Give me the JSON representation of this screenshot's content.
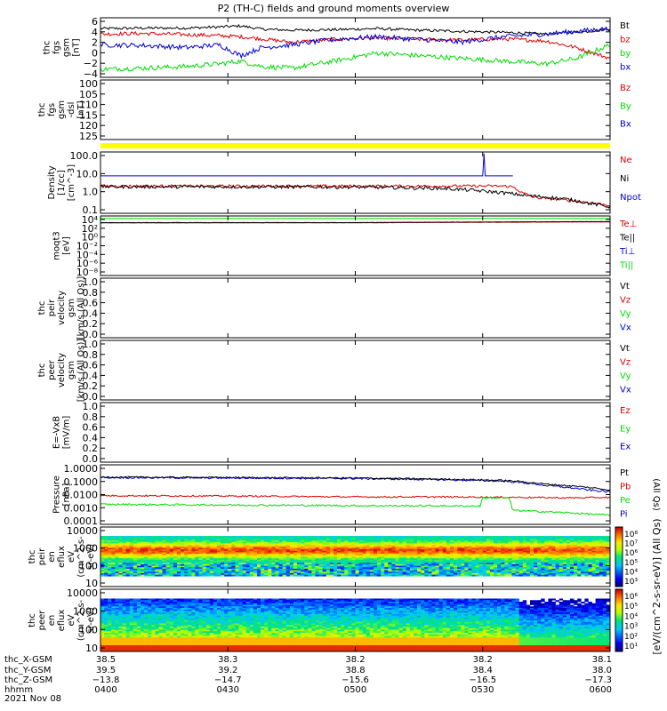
{
  "title": "P2 (TH-C) fields and ground moments overview",
  "date": "2021 Nov 08",
  "colors": {
    "black": "#000000",
    "red": "#dd0000",
    "green": "#00dd00",
    "blue": "#0000dd",
    "yellow": "#ffff00"
  },
  "colorbar": {
    "unit_label": "[eV/(cm^2-s-sr-eV)] (All Qs)",
    "ticks_top": [
      "10⁸",
      "10⁷",
      "10⁶",
      "10⁵",
      "10⁴",
      "10³"
    ],
    "ticks_bottom": [
      "10⁶",
      "10⁵",
      "10⁴",
      "10³",
      "10²",
      "10¹"
    ]
  },
  "chart_data": [
    {
      "type": "line",
      "panel": "fgs-gsm",
      "ylabel": [
        "thc",
        "fgs",
        "gsm",
        "[nT]"
      ],
      "yticks": [
        "6",
        "4",
        "2",
        "0",
        "−2",
        "−4"
      ],
      "ylim": [
        -4.5,
        6.5
      ],
      "legend": [
        "Bt",
        "bz",
        "by",
        "bx"
      ],
      "series": [
        {
          "name": "Bt",
          "color": "#000000",
          "x": [
            0,
            10,
            20,
            28,
            33,
            38,
            45,
            55,
            65,
            75,
            85,
            95,
            105,
            115,
            120
          ],
          "y": [
            4.5,
            4.6,
            4.6,
            4.8,
            5.0,
            4.4,
            4.2,
            4.3,
            4.5,
            4.2,
            4.0,
            3.8,
            3.5,
            4.0,
            4.5
          ],
          "noise": 0.25
        },
        {
          "name": "bz",
          "color": "#dd0000",
          "x": [
            0,
            10,
            20,
            28,
            33,
            38,
            45,
            55,
            65,
            75,
            85,
            95,
            105,
            112,
            120
          ],
          "y": [
            3.5,
            3.6,
            3.4,
            3.2,
            3.0,
            2.6,
            2.0,
            2.5,
            2.8,
            2.5,
            2.4,
            2.6,
            2.2,
            1.0,
            -1.0
          ],
          "noise": 0.35
        },
        {
          "name": "by",
          "color": "#00dd00",
          "x": [
            0,
            10,
            20,
            28,
            33,
            38,
            45,
            55,
            65,
            75,
            85,
            95,
            105,
            112,
            120
          ],
          "y": [
            -3.0,
            -2.8,
            -2.5,
            -2.0,
            -1.5,
            -2.5,
            -2.8,
            -1.5,
            0.0,
            -0.5,
            -1.0,
            -1.5,
            -2.0,
            -1.0,
            1.5
          ],
          "noise": 0.45
        },
        {
          "name": "bx",
          "color": "#0000dd",
          "x": [
            0,
            10,
            20,
            28,
            33,
            38,
            45,
            55,
            65,
            75,
            85,
            95,
            105,
            112,
            120
          ],
          "y": [
            1.5,
            1.4,
            1.0,
            1.5,
            -0.5,
            1.0,
            1.5,
            2.5,
            3.0,
            2.5,
            2.0,
            3.0,
            3.5,
            4.0,
            4.5
          ],
          "noise": 0.45
        }
      ]
    },
    {
      "type": "line",
      "panel": "fgs-gsm-dsl",
      "ylabel": [
        "thc",
        "fgs",
        "gsm",
        "-dsl",
        "[nT]"
      ],
      "yticks": [
        "100",
        "105",
        "110",
        "115",
        "120",
        "125"
      ],
      "ylim": [
        128,
        99
      ],
      "legend": [
        "Bz",
        "By",
        "Bx"
      ],
      "series": []
    },
    {
      "type": "line",
      "panel": "density",
      "ylabel": [
        "Density",
        "[1/cc]",
        "[cm^-3]"
      ],
      "yticks": [
        "100.0",
        "10.0",
        "1.0",
        "0.1"
      ],
      "yscale": "log",
      "ylim": [
        0.05,
        250
      ],
      "legend": [
        "Ne",
        "Ni",
        "Npot"
      ],
      "series": [
        {
          "name": "Npot",
          "color": "#0000dd",
          "x": [
            0,
            30,
            60,
            90,
            90.3,
            90.6,
            95,
            97,
            97.1
          ],
          "y": [
            9,
            9,
            9,
            9,
            200,
            9,
            9,
            9,
            9
          ],
          "noise": 0.0
        },
        {
          "name": "Ne",
          "color": "#dd0000",
          "x": [
            0,
            30,
            60,
            90,
            95,
            97,
            99,
            102,
            110,
            120
          ],
          "y": [
            2.2,
            2.2,
            2.2,
            2.2,
            2.2,
            2.0,
            0.9,
            0.45,
            0.3,
            0.15
          ],
          "noise": 0.08
        },
        {
          "name": "Ni",
          "color": "#000000",
          "x": [
            0,
            30,
            60,
            80,
            90,
            100,
            110,
            115,
            120
          ],
          "y": [
            2.0,
            2.0,
            1.9,
            1.6,
            1.1,
            0.6,
            0.35,
            0.2,
            0.12
          ],
          "noise": 0.1
        }
      ]
    },
    {
      "type": "line",
      "panel": "moqt3",
      "ylabel": [
        "moqt3",
        "[eV]"
      ],
      "yticks": [
        "10⁴",
        "10²",
        "10⁰",
        "10⁻²",
        "10⁻⁴",
        "10⁻⁶",
        "10⁻⁸"
      ],
      "yscale": "log",
      "ylim": [
        1e-09,
        10000.0
      ],
      "legend": [
        "Te⊥",
        "Te||",
        "Ti⊥",
        "Ti||"
      ],
      "series": [
        {
          "name": "Ti||",
          "color": "#00dd00",
          "x": [
            0,
            120
          ],
          "y": [
            3000,
            3000
          ],
          "noise": 0.0
        },
        {
          "name": "Te⊥",
          "color": "#dd0000",
          "x": [
            0,
            60,
            120
          ],
          "y": [
            300,
            320,
            500
          ],
          "noise": 0.03
        },
        {
          "name": "Te||",
          "color": "#000000",
          "x": [
            0,
            60,
            120
          ],
          "y": [
            350,
            360,
            600
          ],
          "noise": 0.03
        }
      ]
    },
    {
      "type": "line",
      "panel": "peir-velocity",
      "ylabel": [
        "thc",
        "peir",
        "velocity",
        "gsm",
        "[km/s (All Qs)]"
      ],
      "yticks": [
        "1.0",
        "0.8",
        "0.6",
        "0.4",
        "0.2",
        "0.0"
      ],
      "ylim": [
        0,
        1
      ],
      "legend": [
        "Vt",
        "Vz",
        "Vy",
        "Vx"
      ],
      "series": []
    },
    {
      "type": "line",
      "panel": "peer-velocity",
      "ylabel": [
        "thc",
        "peer",
        "velocity",
        "gsm",
        "[km/s (All Qs)]"
      ],
      "yticks": [
        "1.0",
        "0.8",
        "0.6",
        "0.4",
        "0.2",
        "0.0"
      ],
      "ylim": [
        0,
        1
      ],
      "legend": [
        "Vt",
        "Vz",
        "Vy",
        "Vx"
      ],
      "series": []
    },
    {
      "type": "line",
      "panel": "e-field",
      "ylabel": [
        "E=-VxB",
        "[mV/m]"
      ],
      "yticks": [
        "1.0",
        "0.8",
        "0.6",
        "0.4",
        "0.2",
        "0.0"
      ],
      "ylim": [
        0,
        1
      ],
      "legend": [
        "Ez",
        "Ey",
        "Ex"
      ],
      "series": []
    },
    {
      "type": "line",
      "panel": "pressure",
      "ylabel": [
        "Pressure",
        "[nPa]"
      ],
      "yticks": [
        "1.0000",
        "0.1000",
        "0.0100",
        "0.0010",
        "0.0001"
      ],
      "yscale": "log",
      "ylim": [
        0.0001,
        1
      ],
      "legend": [
        "Pt",
        "Pb",
        "Pe",
        "Pi"
      ],
      "legend_side": "(All Qs)",
      "series": [
        {
          "name": "Pi",
          "color": "#0000dd",
          "x": [
            0,
            30,
            60,
            80,
            95,
            100,
            105,
            110,
            115,
            120
          ],
          "y": [
            0.14,
            0.13,
            0.12,
            0.1,
            0.08,
            0.06,
            0.04,
            0.03,
            0.02,
            0.015
          ],
          "noise": 0.06
        },
        {
          "name": "Pt",
          "color": "#000000",
          "x": [
            0,
            30,
            60,
            80,
            95,
            100,
            105,
            110,
            115,
            120
          ],
          "y": [
            0.15,
            0.14,
            0.13,
            0.11,
            0.09,
            0.07,
            0.05,
            0.04,
            0.03,
            0.02
          ],
          "noise": 0.05
        },
        {
          "name": "Pb",
          "color": "#dd0000",
          "x": [
            0,
            30,
            60,
            80,
            100,
            110,
            120
          ],
          "y": [
            0.0085,
            0.008,
            0.007,
            0.007,
            0.0065,
            0.006,
            0.0065
          ],
          "noise": 0.05
        },
        {
          "name": "Pe",
          "color": "#00dd00",
          "x": [
            0,
            30,
            60,
            89.5,
            90,
            96,
            97,
            100,
            110,
            120
          ],
          "y": [
            0.0022,
            0.002,
            0.0018,
            0.0017,
            0.006,
            0.006,
            0.0009,
            0.0008,
            0.0006,
            0.0004
          ],
          "noise": 0.06
        }
      ]
    },
    {
      "type": "heatmap",
      "panel": "peir-en-eflux",
      "ylabel": [
        "thc",
        "peir",
        "en",
        "eflux",
        "eV",
        "(cm^2-s-",
        "sr-eV)"
      ],
      "yticks": [
        "10000",
        "1000",
        "100",
        "10"
      ],
      "yscale": "log",
      "ylim": [
        5,
        20000
      ]
    },
    {
      "type": "heatmap",
      "panel": "peer-en-eflux",
      "ylabel": [
        "thc",
        "peer",
        "en",
        "eflux",
        "eV",
        "(cm^2-s-",
        "sr-eV)"
      ],
      "yticks": [
        "10000",
        "1000",
        "100",
        "10"
      ],
      "yscale": "log",
      "ylim": [
        5,
        20000
      ]
    }
  ],
  "xaxis": {
    "row_labels": [
      "thc_X-GSM",
      "thc_Y-GSM",
      "thc_Z-GSM",
      "hhmm",
      "2021 Nov 08"
    ],
    "ticks": [
      {
        "t": 0,
        "x": "38.5",
        "y": "39.5",
        "z": "−13.8",
        "time": "0400"
      },
      {
        "t": 30,
        "x": "38.3",
        "y": "39.2",
        "z": "−14.7",
        "time": "0430"
      },
      {
        "t": 60,
        "x": "38.2",
        "y": "38.8",
        "z": "−15.6",
        "time": "0500"
      },
      {
        "t": 90,
        "x": "38.2",
        "y": "38.4",
        "z": "−16.5",
        "time": "0530"
      },
      {
        "t": 120,
        "x": "38.1",
        "y": "38.0",
        "z": "−17.3",
        "time": "0600"
      }
    ],
    "range": [
      0,
      120
    ]
  }
}
